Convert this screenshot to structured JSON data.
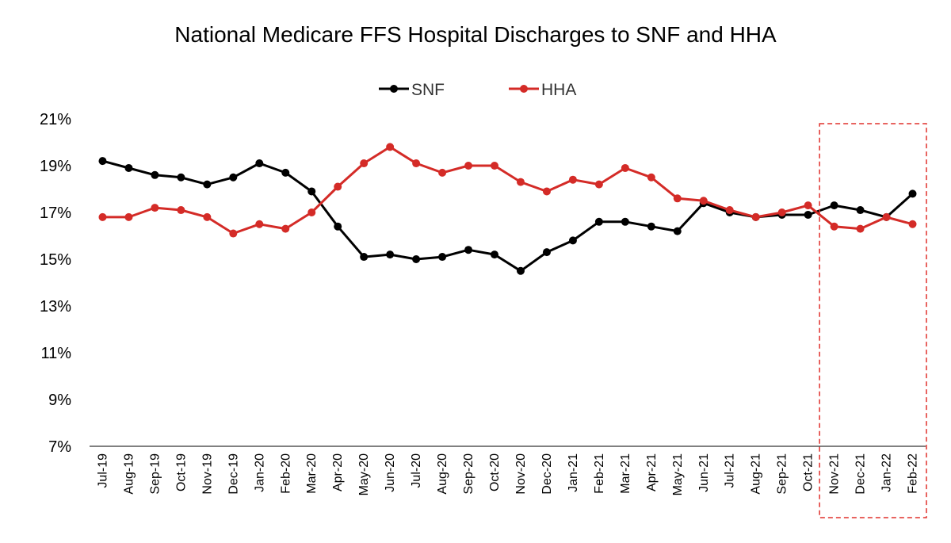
{
  "chart_data": {
    "type": "line",
    "title": "National Medicare FFS Hospital Discharges to SNF and HHA",
    "categories": [
      "Jul-19",
      "Aug-19",
      "Sep-19",
      "Oct-19",
      "Nov-19",
      "Dec-19",
      "Jan-20",
      "Feb-20",
      "Mar-20",
      "Apr-20",
      "May-20",
      "Jun-20",
      "Jul-20",
      "Aug-20",
      "Sep-20",
      "Oct-20",
      "Nov-20",
      "Dec-20",
      "Jan-21",
      "Feb-21",
      "Mar-21",
      "Apr-21",
      "May-21",
      "Jun-21",
      "Jul-21",
      "Aug-21",
      "Sep-21",
      "Oct-21",
      "Nov-21",
      "Dec-21",
      "Jan-22",
      "Feb-22"
    ],
    "series": [
      {
        "name": "SNF",
        "color": "#000000",
        "values": [
          19.2,
          18.9,
          18.6,
          18.5,
          18.2,
          18.5,
          19.1,
          18.7,
          17.9,
          16.4,
          15.1,
          15.2,
          15.0,
          15.1,
          15.4,
          15.2,
          14.5,
          15.3,
          15.8,
          16.6,
          16.6,
          16.4,
          16.2,
          17.4,
          17.0,
          16.8,
          16.9,
          16.9,
          17.3,
          17.1,
          16.8,
          17.8
        ]
      },
      {
        "name": "HHA",
        "color": "#d42b27",
        "values": [
          16.8,
          16.8,
          17.2,
          17.1,
          16.8,
          16.1,
          16.5,
          16.3,
          17.0,
          18.1,
          19.1,
          19.8,
          19.1,
          18.7,
          19.0,
          19.0,
          18.3,
          17.9,
          18.4,
          18.2,
          18.9,
          18.5,
          17.6,
          17.5,
          17.1,
          16.8,
          17.0,
          17.3,
          16.4,
          16.3,
          16.8,
          16.5
        ]
      }
    ],
    "ylim": [
      7,
      21
    ],
    "yticks": [
      "7%",
      "9%",
      "11%",
      "13%",
      "15%",
      "17%",
      "19%",
      "21%"
    ],
    "ytick_values": [
      7,
      9,
      11,
      13,
      15,
      17,
      19,
      21
    ],
    "grid": false,
    "legend_position": "top-center",
    "highlight": {
      "start": "Nov-21",
      "end": "Feb-22",
      "style": "dashed",
      "color": "#e0312c"
    }
  }
}
